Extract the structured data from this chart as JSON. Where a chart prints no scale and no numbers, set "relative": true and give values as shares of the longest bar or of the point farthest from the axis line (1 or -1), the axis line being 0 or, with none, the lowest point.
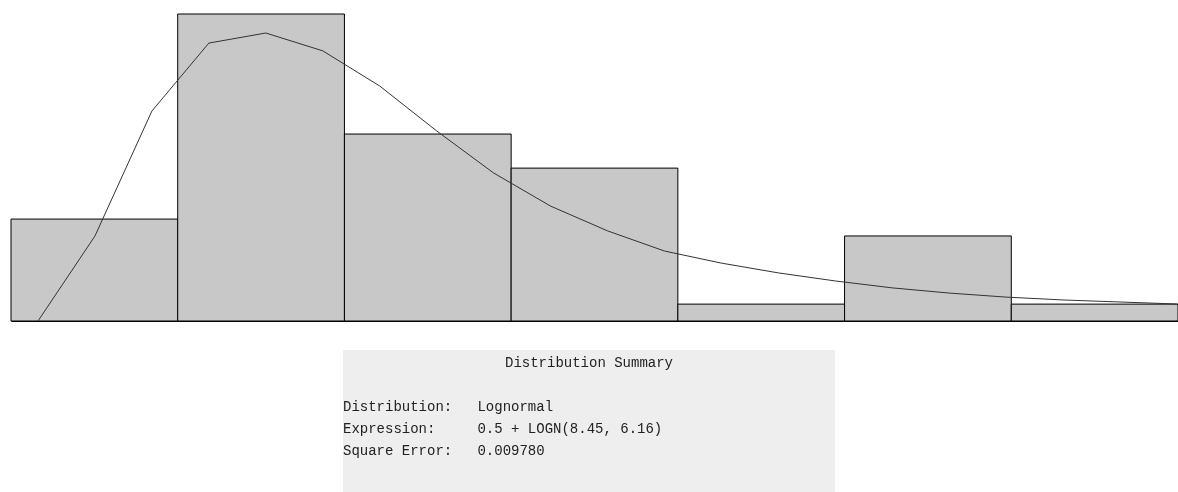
{
  "chart_data": [
    {
      "type": "bar",
      "relative": true,
      "tick_labels": false,
      "color": "#c8c8c8",
      "categories": [
        null,
        null,
        null,
        null,
        null,
        null,
        null
      ],
      "values": [
        0.332,
        1,
        0.609,
        0.498,
        0.055,
        0.277,
        0.055
      ],
      "annotations": [
        "Distribution Summary",
        "Distribution:   Lognormal",
        "Expression:     0.5 + LOGN(8.45, 6.16)",
        "Square Error:   0.009780"
      ]
    },
    {
      "type": "line",
      "relative": true,
      "tick_labels": false,
      "color": "#333333",
      "categories": [
        null,
        null,
        null,
        null,
        null,
        null,
        null,
        null,
        null,
        null,
        null,
        null,
        null,
        null,
        null,
        null,
        null,
        null,
        null,
        null,
        null
      ],
      "values": [
        0,
        0.295,
        0.729,
        0.965,
        1,
        0.938,
        0.816,
        0.66,
        0.514,
        0.399,
        0.313,
        0.243,
        0.201,
        0.167,
        0.139,
        0.115,
        0.097,
        0.083,
        0.073,
        0.066,
        0.059
      ]
    }
  ]
}
